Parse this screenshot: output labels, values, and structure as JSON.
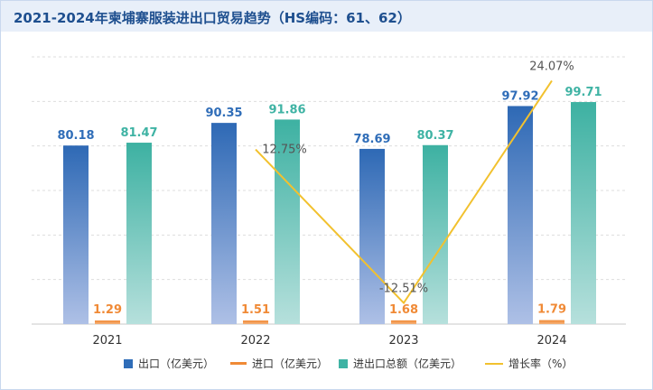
{
  "chart_data": {
    "type": "bar",
    "title": "2021-2024年柬埔寨服装进出口贸易趋势（HS编码：61、62）",
    "categories": [
      "2021",
      "2022",
      "2023",
      "2024"
    ],
    "series": [
      {
        "name": "出口（亿美元）",
        "kind": "bar",
        "color": "#2f6db8",
        "values": [
          80.18,
          90.35,
          78.69,
          97.92
        ]
      },
      {
        "name": "进口（亿美元）",
        "kind": "bar",
        "color": "#f08a36",
        "values": [
          1.29,
          1.51,
          1.68,
          1.79
        ]
      },
      {
        "name": "进出口总额（亿美元）",
        "kind": "bar",
        "color": "#3fb3a4",
        "values": [
          81.47,
          91.86,
          80.37,
          99.71
        ]
      },
      {
        "name": "增长率（%）",
        "kind": "line",
        "color": "#f2c12e",
        "values": [
          null,
          12.75,
          -12.51,
          24.07
        ]
      }
    ],
    "value_labels": {
      "export": [
        "80.18",
        "90.35",
        "78.69",
        "97.92"
      ],
      "import": [
        "1.29",
        "1.51",
        "1.68",
        "1.79"
      ],
      "total": [
        "81.47",
        "91.86",
        "80.37",
        "99.71"
      ],
      "growth": [
        "",
        "12.75%",
        "-12.51%",
        "24.07%"
      ]
    },
    "ylim": [
      0,
      120
    ],
    "growth_ylim": [
      -16,
      28
    ],
    "grid": true,
    "legend_position": "bottom"
  }
}
